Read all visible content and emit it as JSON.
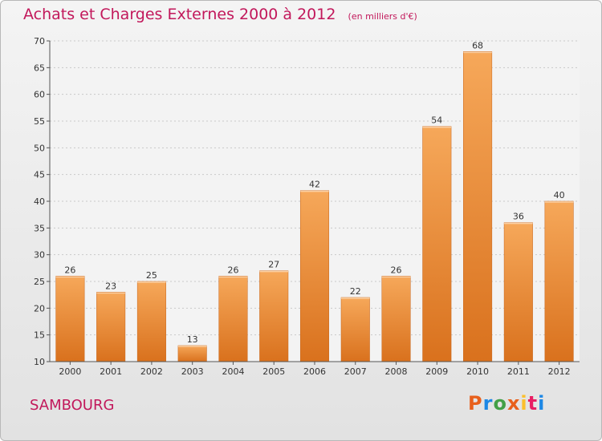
{
  "header": {
    "title": "Achats et Charges Externes 2000 à 2012",
    "unit": "(en milliers d'€)"
  },
  "footer": {
    "commune": "SAMBOURG",
    "brand": "Proxiti",
    "brand_colors": [
      "#e8601c",
      "#1e88e5",
      "#43a047",
      "#e8601c",
      "#fbc02d",
      "#e91e63",
      "#1e88e5"
    ]
  },
  "colors": {
    "bar_light": "#f6a85a",
    "bar_dark": "#d9711d",
    "title": "#c2185b",
    "axis": "#555555"
  },
  "chart_data": {
    "type": "bar",
    "title": "Achats et Charges Externes 2000 à 2012",
    "subtitle": "(en milliers d'€)",
    "xlabel": "",
    "ylabel": "",
    "categories": [
      "2000",
      "2001",
      "2002",
      "2003",
      "2004",
      "2005",
      "2006",
      "2007",
      "2008",
      "2009",
      "2010",
      "2011",
      "2012"
    ],
    "values": [
      26,
      23,
      25,
      13,
      26,
      27,
      42,
      22,
      26,
      54,
      68,
      36,
      40
    ],
    "ylim": [
      10,
      70
    ],
    "yticks": [
      10,
      15,
      20,
      25,
      30,
      35,
      40,
      45,
      50,
      55,
      60,
      65,
      70
    ],
    "grid": true,
    "legend": "none"
  }
}
